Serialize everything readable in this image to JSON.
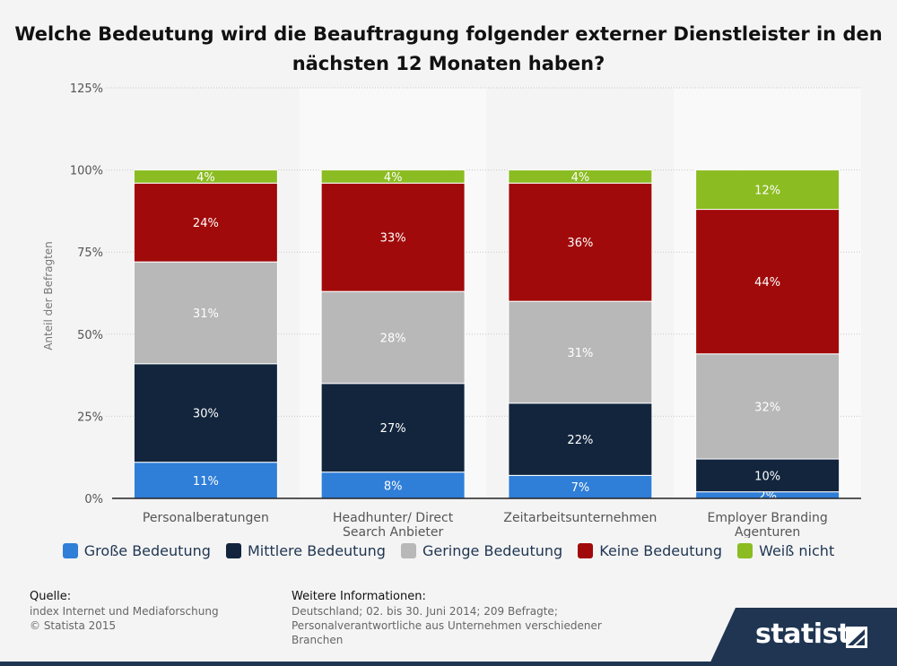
{
  "title": "Welche Bedeutung wird die Beauftragung folgender externer Dienstleister in den nächsten 12 Monaten haben?",
  "chart_data": {
    "type": "bar",
    "stacked": true,
    "ylabel": "Anteil der Befragten",
    "ylim": [
      0,
      125
    ],
    "yticks": [
      "0%",
      "25%",
      "50%",
      "75%",
      "100%",
      "125%"
    ],
    "grid": true,
    "legend_position": "bottom",
    "categories": [
      "Personalberatungen",
      "Headhunter/ Direct Search Anbieter",
      "Zeitarbeitsunternehmen",
      "Employer Branding Agenturen"
    ],
    "category_lines": [
      [
        "Personalberatungen"
      ],
      [
        "Headhunter/ Direct",
        "Search Anbieter"
      ],
      [
        "Zeitarbeitsunternehmen"
      ],
      [
        "Employer Branding",
        "Agenturen"
      ]
    ],
    "series": [
      {
        "name": "Große Bedeutung",
        "color": "#2f7ed8",
        "values": [
          11,
          8,
          7,
          2
        ],
        "labels": [
          "11%",
          "8%",
          "7%",
          "2%"
        ]
      },
      {
        "name": "Mittlere Bedeutung",
        "color": "#12253d",
        "values": [
          30,
          27,
          22,
          10
        ],
        "labels": [
          "30%",
          "27%",
          "22%",
          "10%"
        ]
      },
      {
        "name": "Geringe Bedeutung",
        "color": "#b8b8b8",
        "values": [
          31,
          28,
          31,
          32
        ],
        "labels": [
          "31%",
          "28%",
          "31%",
          "32%"
        ]
      },
      {
        "name": "Keine Bedeutung",
        "color": "#a10a0a",
        "values": [
          24,
          33,
          36,
          44
        ],
        "labels": [
          "24%",
          "33%",
          "36%",
          "44%"
        ]
      },
      {
        "name": "Weiß nicht",
        "color": "#8bbc21",
        "values": [
          4,
          4,
          4,
          12
        ],
        "labels": [
          "4%",
          "4%",
          "4%",
          "12%"
        ]
      }
    ]
  },
  "legend": {
    "items": [
      {
        "label": "Große Bedeutung",
        "color": "#2f7ed8"
      },
      {
        "label": "Mittlere Bedeutung",
        "color": "#12253d"
      },
      {
        "label": "Geringe Bedeutung",
        "color": "#b8b8b8"
      },
      {
        "label": "Keine Bedeutung",
        "color": "#a10a0a"
      },
      {
        "label": "Weiß nicht",
        "color": "#8bbc21"
      }
    ]
  },
  "footer": {
    "source_heading": "Quelle:",
    "source_line1": "index Internet und Mediaforschung",
    "source_line2": "© Statista 2015",
    "info_heading": "Weitere Informationen:",
    "info_line1": "Deutschland; 02. bis 30. Juni 2014; 209 Befragte;",
    "info_line2": "Personalverantwortliche aus Unternehmen verschiedener",
    "info_line3": "Branchen"
  },
  "logo": {
    "text": "statista"
  }
}
